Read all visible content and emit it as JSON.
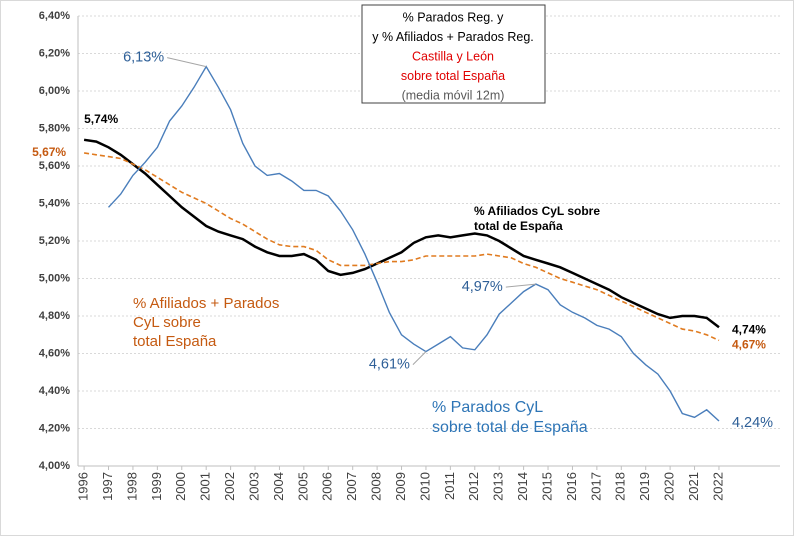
{
  "chart_data": {
    "type": "line",
    "title": [
      "% Parados Reg. y",
      "y % Afiliados + Parados Reg.",
      "Castilla y León",
      "sobre total España",
      "(media móvil 12m)"
    ],
    "x": [
      1996,
      1996.5,
      1997,
      1997.5,
      1998,
      1998.5,
      1999,
      1999.5,
      2000,
      2000.5,
      2001,
      2001.5,
      2002,
      2002.5,
      2003,
      2003.5,
      2004,
      2004.5,
      2005,
      2005.5,
      2006,
      2006.5,
      2007,
      2007.5,
      2008,
      2008.5,
      2009,
      2009.5,
      2010,
      2010.5,
      2011,
      2011.5,
      2012,
      2012.5,
      2013,
      2013.5,
      2014,
      2014.5,
      2015,
      2015.5,
      2016,
      2016.5,
      2017,
      2017.5,
      2018,
      2018.5,
      2019,
      2019.5,
      2020,
      2020.5,
      2021,
      2021.5,
      2022
    ],
    "xlim": [
      1995.75,
      2024.5
    ],
    "xticks": [
      1996,
      1997,
      1998,
      1999,
      2000,
      2001,
      2002,
      2003,
      2004,
      2005,
      2006,
      2007,
      2008,
      2009,
      2010,
      2011,
      2012,
      2013,
      2014,
      2015,
      2016,
      2017,
      2018,
      2019,
      2020,
      2021,
      2022
    ],
    "ylim": [
      4.0,
      6.4
    ],
    "yticks": [
      {
        "value": 4.0,
        "label": "4,00%"
      },
      {
        "value": 4.2,
        "label": "4,20%"
      },
      {
        "value": 4.4,
        "label": "4,40%"
      },
      {
        "value": 4.6,
        "label": "4,60%"
      },
      {
        "value": 4.8,
        "label": "4,80%"
      },
      {
        "value": 5.0,
        "label": "5,00%"
      },
      {
        "value": 5.2,
        "label": "5,20%"
      },
      {
        "value": 5.4,
        "label": "5,40%"
      },
      {
        "value": 5.6,
        "label": "5,60%"
      },
      {
        "value": 5.8,
        "label": "5,80%"
      },
      {
        "value": 6.0,
        "label": "6,00%"
      },
      {
        "value": 6.2,
        "label": "6,20%"
      },
      {
        "value": 6.4,
        "label": "6,40%"
      }
    ],
    "grid": true,
    "series": [
      {
        "name": "% Afiliados CyL sobre\ntotal de España",
        "color": "#000000",
        "dash": false,
        "values": [
          5.74,
          5.73,
          5.7,
          5.66,
          5.61,
          5.56,
          5.5,
          5.44,
          5.38,
          5.33,
          5.28,
          5.25,
          5.23,
          5.21,
          5.17,
          5.14,
          5.12,
          5.12,
          5.13,
          5.1,
          5.04,
          5.02,
          5.03,
          5.05,
          5.08,
          5.11,
          5.14,
          5.19,
          5.22,
          5.23,
          5.22,
          5.23,
          5.24,
          5.23,
          5.2,
          5.16,
          5.12,
          5.1,
          5.08,
          5.06,
          5.03,
          5.0,
          4.97,
          4.94,
          4.9,
          4.87,
          4.84,
          4.81,
          4.79,
          4.8,
          4.8,
          4.79,
          4.74
        ],
        "value_labels": [
          "5,74%",
          null,
          null,
          null,
          null,
          null,
          null,
          null,
          null,
          null,
          null,
          null,
          null,
          null,
          null,
          null,
          null,
          null,
          null,
          null,
          null,
          null,
          null,
          null,
          null,
          null,
          null,
          null,
          null,
          null,
          null,
          null,
          null,
          null,
          null,
          null,
          null,
          null,
          null,
          null,
          null,
          null,
          null,
          null,
          null,
          null,
          null,
          null,
          null,
          null,
          null,
          null,
          "4,74%"
        ]
      },
      {
        "name": "% Afiliados + Parados\nCyL sobre\ntotal España",
        "color": "#e07b20",
        "dash": true,
        "values": [
          5.67,
          5.66,
          5.65,
          5.64,
          5.61,
          5.58,
          5.54,
          5.5,
          5.46,
          5.43,
          5.4,
          5.36,
          5.32,
          5.29,
          5.25,
          5.21,
          5.18,
          5.17,
          5.17,
          5.15,
          5.1,
          5.07,
          5.07,
          5.07,
          5.08,
          5.09,
          5.09,
          5.1,
          5.12,
          5.12,
          5.12,
          5.12,
          5.12,
          5.13,
          5.12,
          5.11,
          5.08,
          5.06,
          5.03,
          5.0,
          4.98,
          4.96,
          4.94,
          4.91,
          4.88,
          4.85,
          4.82,
          4.79,
          4.76,
          4.73,
          4.72,
          4.7,
          4.67
        ],
        "value_labels": [
          "5,67%",
          null,
          null,
          null,
          null,
          null,
          null,
          null,
          null,
          null,
          null,
          null,
          null,
          null,
          null,
          null,
          null,
          null,
          null,
          null,
          null,
          null,
          null,
          null,
          null,
          null,
          null,
          null,
          null,
          null,
          null,
          null,
          null,
          null,
          null,
          null,
          null,
          null,
          null,
          null,
          null,
          null,
          null,
          null,
          null,
          null,
          null,
          null,
          null,
          null,
          null,
          null,
          "4,67%"
        ]
      },
      {
        "name": "% Parados CyL\nsobre total de España",
        "color": "#4a7ebb",
        "dash": false,
        "values": [
          null,
          null,
          5.38,
          5.45,
          5.55,
          5.62,
          5.7,
          5.84,
          5.92,
          6.02,
          6.13,
          6.02,
          5.9,
          5.72,
          5.6,
          5.55,
          5.56,
          5.52,
          5.47,
          5.47,
          5.44,
          5.36,
          5.26,
          5.13,
          4.98,
          4.82,
          4.7,
          4.65,
          4.61,
          4.65,
          4.69,
          4.63,
          4.62,
          4.7,
          4.81,
          4.87,
          4.93,
          4.97,
          4.94,
          4.86,
          4.82,
          4.79,
          4.75,
          4.73,
          4.69,
          4.6,
          4.54,
          4.49,
          4.4,
          4.28,
          4.26,
          4.3,
          4.24
        ],
        "value_labels": [
          null,
          null,
          null,
          null,
          null,
          null,
          null,
          null,
          null,
          null,
          "6,13%",
          null,
          null,
          null,
          null,
          null,
          null,
          null,
          null,
          null,
          null,
          null,
          null,
          null,
          null,
          null,
          null,
          null,
          "4,61%",
          null,
          null,
          null,
          null,
          null,
          null,
          null,
          null,
          "4,97%",
          null,
          null,
          null,
          null,
          null,
          null,
          null,
          null,
          null,
          null,
          null,
          null,
          null,
          null,
          "4,24%"
        ]
      }
    ]
  }
}
